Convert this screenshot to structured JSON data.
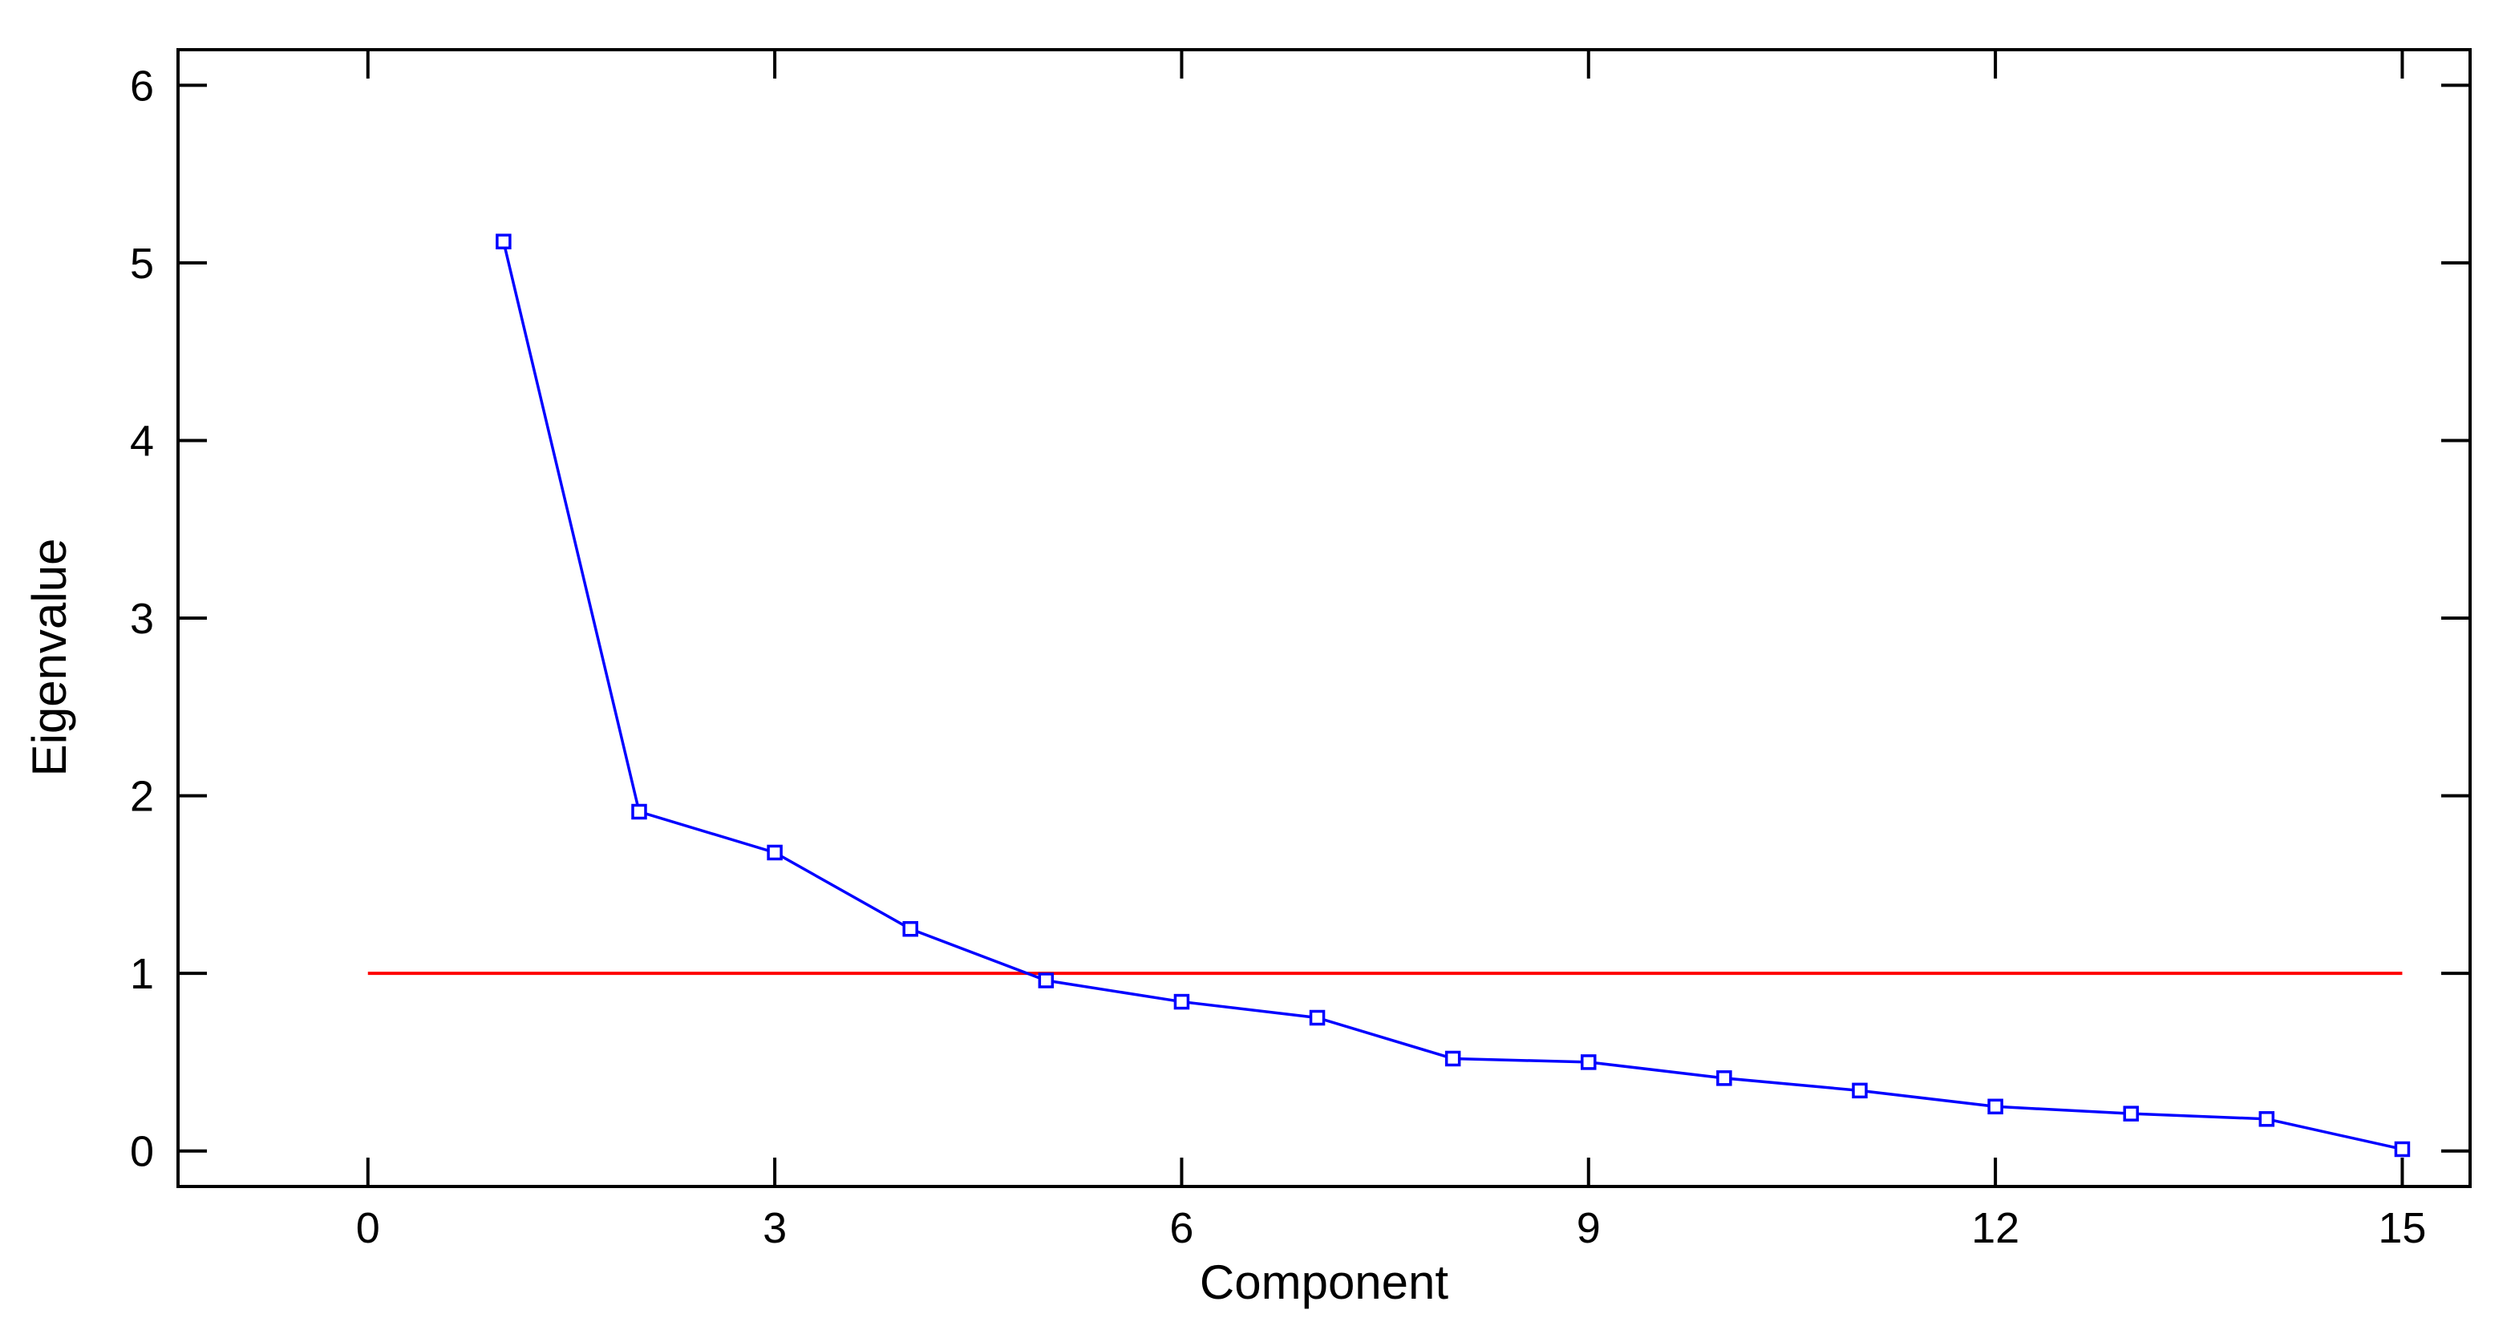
{
  "chart_data": {
    "type": "line",
    "title": "",
    "xlabel": "Component",
    "ylabel": "Eigenvalue",
    "xlim": [
      -1.4,
      15.5
    ],
    "ylim": [
      -0.2,
      6.2
    ],
    "xticks": [
      0,
      3,
      6,
      9,
      12,
      15
    ],
    "yticks": [
      0,
      1,
      2,
      3,
      4,
      5,
      6
    ],
    "grid": false,
    "series": [
      {
        "x": [
          1,
          2,
          3,
          4,
          5,
          6,
          7,
          8,
          9,
          10,
          11,
          12,
          13,
          14,
          15
        ],
        "values": [
          5.12,
          1.91,
          1.68,
          1.25,
          0.96,
          0.84,
          0.75,
          0.52,
          0.5,
          0.41,
          0.34,
          0.25,
          0.21,
          0.18,
          0.01
        ],
        "color": "#0000ff",
        "marker": "square"
      }
    ],
    "reference_lines": [
      {
        "y": 1,
        "x_from": 0,
        "x_to": 15,
        "color": "#ff0000"
      }
    ]
  }
}
